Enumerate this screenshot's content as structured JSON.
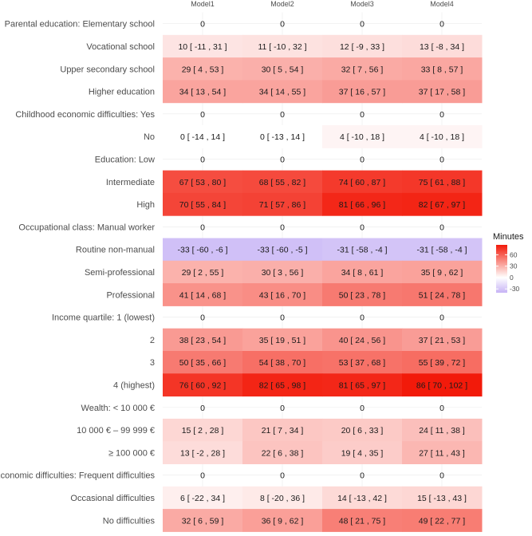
{
  "chart_data": {
    "type": "heatmap",
    "columns": [
      "Model1",
      "Model2",
      "Model3",
      "Model4"
    ],
    "rows": [
      {
        "label": "Parental education: Elementary school",
        "cells": [
          [
            0,
            null,
            null
          ],
          [
            0,
            null,
            null
          ],
          [
            0,
            null,
            null
          ],
          [
            0,
            null,
            null
          ]
        ]
      },
      {
        "label": "Vocational school",
        "cells": [
          [
            10,
            -11,
            31
          ],
          [
            11,
            -10,
            32
          ],
          [
            12,
            -9,
            33
          ],
          [
            13,
            -8,
            34
          ]
        ]
      },
      {
        "label": "Upper secondary school",
        "cells": [
          [
            29,
            4,
            53
          ],
          [
            30,
            5,
            54
          ],
          [
            32,
            7,
            56
          ],
          [
            33,
            8,
            57
          ]
        ]
      },
      {
        "label": "Higher education",
        "cells": [
          [
            34,
            13,
            54
          ],
          [
            34,
            14,
            55
          ],
          [
            37,
            16,
            57
          ],
          [
            37,
            17,
            58
          ]
        ]
      },
      {
        "label": "Childhood economic difficulties: Yes",
        "cells": [
          [
            0,
            null,
            null
          ],
          [
            0,
            null,
            null
          ],
          [
            0,
            null,
            null
          ],
          [
            0,
            null,
            null
          ]
        ]
      },
      {
        "label": "No",
        "cells": [
          [
            0,
            -14,
            14
          ],
          [
            0,
            -13,
            14
          ],
          [
            4,
            -10,
            18
          ],
          [
            4,
            -10,
            18
          ]
        ]
      },
      {
        "label": "Education: Low",
        "cells": [
          [
            0,
            null,
            null
          ],
          [
            0,
            null,
            null
          ],
          [
            0,
            null,
            null
          ],
          [
            0,
            null,
            null
          ]
        ]
      },
      {
        "label": "Intermediate",
        "cells": [
          [
            67,
            53,
            80
          ],
          [
            68,
            55,
            82
          ],
          [
            74,
            60,
            87
          ],
          [
            75,
            61,
            88
          ]
        ]
      },
      {
        "label": "High",
        "cells": [
          [
            70,
            55,
            84
          ],
          [
            71,
            57,
            86
          ],
          [
            81,
            66,
            96
          ],
          [
            82,
            67,
            97
          ]
        ]
      },
      {
        "label": "Occupational class: Manual worker",
        "cells": [
          [
            0,
            null,
            null
          ],
          [
            0,
            null,
            null
          ],
          [
            0,
            null,
            null
          ],
          [
            0,
            null,
            null
          ]
        ]
      },
      {
        "label": "Routine non-manual",
        "cells": [
          [
            -33,
            -60,
            -6
          ],
          [
            -33,
            -60,
            -5
          ],
          [
            -31,
            -58,
            -4
          ],
          [
            -31,
            -58,
            -4
          ]
        ]
      },
      {
        "label": "Semi-professional",
        "cells": [
          [
            29,
            2,
            55
          ],
          [
            30,
            3,
            56
          ],
          [
            34,
            8,
            61
          ],
          [
            35,
            9,
            62
          ]
        ]
      },
      {
        "label": "Professional",
        "cells": [
          [
            41,
            14,
            68
          ],
          [
            43,
            16,
            70
          ],
          [
            50,
            23,
            78
          ],
          [
            51,
            24,
            78
          ]
        ]
      },
      {
        "label": "Income quartile: 1 (lowest)",
        "cells": [
          [
            0,
            null,
            null
          ],
          [
            0,
            null,
            null
          ],
          [
            0,
            null,
            null
          ],
          [
            0,
            null,
            null
          ]
        ]
      },
      {
        "label": "2",
        "cells": [
          [
            38,
            23,
            54
          ],
          [
            35,
            19,
            51
          ],
          [
            40,
            24,
            56
          ],
          [
            37,
            21,
            53
          ]
        ]
      },
      {
        "label": "3",
        "cells": [
          [
            50,
            35,
            66
          ],
          [
            54,
            38,
            70
          ],
          [
            53,
            37,
            68
          ],
          [
            55,
            39,
            72
          ]
        ]
      },
      {
        "label": "4 (highest)",
        "cells": [
          [
            76,
            60,
            92
          ],
          [
            82,
            65,
            98
          ],
          [
            81,
            65,
            97
          ],
          [
            86,
            70,
            102
          ]
        ]
      },
      {
        "label": "Wealth: < 10 000 €",
        "cells": [
          [
            0,
            null,
            null
          ],
          [
            0,
            null,
            null
          ],
          [
            0,
            null,
            null
          ],
          [
            0,
            null,
            null
          ]
        ]
      },
      {
        "label": "10 000 € – 99 999 €",
        "cells": [
          [
            15,
            2,
            28
          ],
          [
            21,
            7,
            34
          ],
          [
            20,
            6,
            33
          ],
          [
            24,
            11,
            38
          ]
        ]
      },
      {
        "label": "≥ 100 000 €",
        "cells": [
          [
            13,
            -2,
            28
          ],
          [
            22,
            6,
            38
          ],
          [
            19,
            4,
            35
          ],
          [
            27,
            11,
            43
          ]
        ]
      },
      {
        "label": "Economic difficulties: Frequent difficulties",
        "cells": [
          [
            0,
            null,
            null
          ],
          [
            0,
            null,
            null
          ],
          [
            0,
            null,
            null
          ],
          [
            0,
            null,
            null
          ]
        ]
      },
      {
        "label": "Occasional difficulties",
        "cells": [
          [
            6,
            -22,
            34
          ],
          [
            8,
            -20,
            36
          ],
          [
            14,
            -13,
            42
          ],
          [
            15,
            -13,
            43
          ]
        ]
      },
      {
        "label": "No difficulties",
        "cells": [
          [
            32,
            6,
            59
          ],
          [
            36,
            9,
            62
          ],
          [
            48,
            21,
            75
          ],
          [
            49,
            22,
            77
          ]
        ]
      }
    ],
    "legend": {
      "title": "Minutes",
      "ticks": [
        60,
        30,
        0,
        -30
      ],
      "low_color": "#c6b3f5",
      "mid_color": "#ffffff",
      "high_color": "#f21a0a",
      "value_min": -40,
      "value_max": 86
    }
  }
}
